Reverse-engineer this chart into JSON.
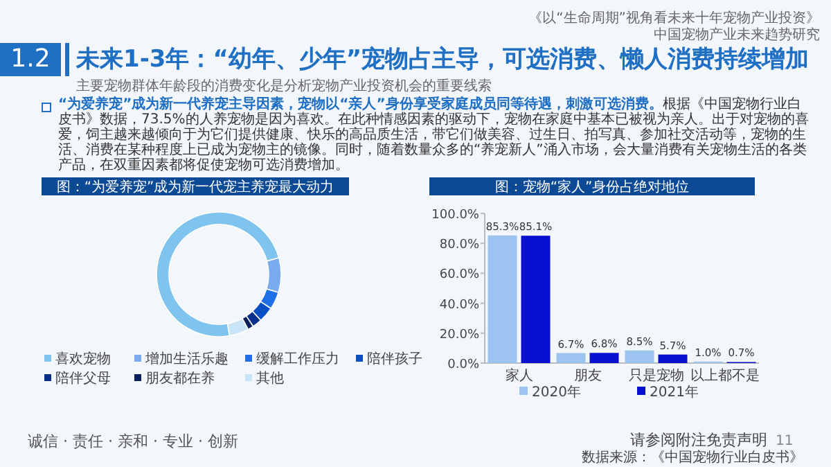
{
  "chart_data": [
    {
      "type": "other",
      "title": "未来1-3年：“幼年、少年”宠物占主导，可选消费、懒人消费持续增加",
      "subtitle": "主要宠物群体年龄段的消费变化是分析宠物产业投资机会的重要线索",
      "annotations": [
        "《以“生命周期”视角看未来十年宠物产业投资》",
        "中国宠物产业未来趋势研究",
        "1.2",
        "“为爱养宠”成为新一代养宠主导因素，宠物以“亲人”身份享受家庭成员同等待遇，刺激可选消费。",
        "根据《中国宠物行业白皮书》数据，73.5%的人养宠物是因为喜欢。在此种情感因素的驱动下，宠物在家庭中基本已被视为亲人。出于对宠物的喜爱，饲主越来越倾向于为它们提供健康、快乐的高品质生活，带它们做美容、过生日、拍写真、参加社交活动等，宠物的生活、消费在某种程度上已成为宠物主的镜像。同时，随着数量众多的“养宠新人”涌入市场，会大量消费有关宠物生活的各类产品，在双重因素都将促使宠物可选消费增加。",
        "诚信 · 责任 · 亲和 · 专业 · 创新",
        "请参阅附注免责声明",
        "11",
        "数据来源：《中国宠物行业白皮书》"
      ]
    },
    {
      "type": "donut",
      "title": "图：“为爱养宠”成为新一代宠主养宠最大动力",
      "categories": [
        "喜欢宠物",
        "增加生活乐趣",
        "缓解工作压力",
        "陪伴孩子",
        "陪伴父母",
        "朋友都在养",
        "其他"
      ],
      "values": [
        73.5,
        9,
        4.5,
        4,
        2.5,
        1.5,
        5
      ],
      "colors": [
        "#7fc4ef",
        "#7aaaf0",
        "#1f6fe6",
        "#0a4fc4",
        "#0a2f8a",
        "#0a1f5e",
        "#c8e4f6"
      ],
      "legend": "bottom"
    },
    {
      "type": "bar",
      "title": "图：宠物“家人”身份占绝对地位",
      "categories": [
        "家人",
        "朋友",
        "只是宠物",
        "以上都不是"
      ],
      "series": [
        {
          "name": "2020年",
          "color": "#9dc3f0",
          "values": [
            85.3,
            6.7,
            8.5,
            1.0
          ],
          "value_labels": [
            "85.3%",
            "6.7%",
            "8.5%",
            "1.0%"
          ]
        },
        {
          "name": "2021年",
          "color": "#0a10d0",
          "values": [
            85.1,
            6.8,
            5.7,
            0.7
          ],
          "value_labels": [
            "85.1%",
            "6.8%",
            "5.7%",
            "0.7%"
          ]
        }
      ],
      "ylim": [
        0,
        100
      ],
      "yticks": [
        {
          "value": 0,
          "label": "0.0%"
        },
        {
          "value": 20,
          "label": "20.0%"
        },
        {
          "value": 40,
          "label": "40.0%"
        },
        {
          "value": 60,
          "label": "60.0%"
        },
        {
          "value": 80,
          "label": "80.0%"
        },
        {
          "value": 100,
          "label": "100.0%"
        }
      ],
      "legend": "bottom"
    }
  ]
}
